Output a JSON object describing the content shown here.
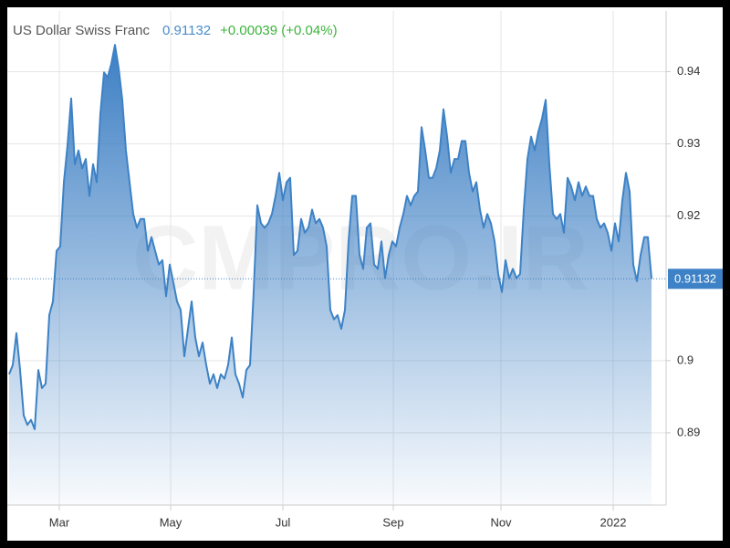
{
  "chart_data": {
    "type": "area",
    "title": "US Dollar Swiss Franc",
    "price": 0.91132,
    "change": "+0.00039 (+0.04%)",
    "watermark": "CMPRO.IR",
    "color": "#3d82c6",
    "values": [
      0.8981,
      0.8994,
      0.9038,
      0.8987,
      0.8924,
      0.8911,
      0.8918,
      0.8905,
      0.8987,
      0.8962,
      0.8968,
      0.9063,
      0.9082,
      0.9152,
      0.9158,
      0.9247,
      0.9298,
      0.9363,
      0.9272,
      0.9291,
      0.9266,
      0.9279,
      0.9228,
      0.9272,
      0.9247,
      0.9342,
      0.9399,
      0.9392,
      0.9411,
      0.9437,
      0.9405,
      0.9361,
      0.9291,
      0.9247,
      0.9203,
      0.9184,
      0.9196,
      0.9196,
      0.9152,
      0.9171,
      0.9152,
      0.9133,
      0.9139,
      0.9089,
      0.9133,
      0.9108,
      0.9082,
      0.907,
      0.9006,
      0.9044,
      0.9082,
      0.9032,
      0.9006,
      0.9025,
      0.8994,
      0.8968,
      0.8981,
      0.8962,
      0.8981,
      0.8975,
      0.8994,
      0.9032,
      0.8981,
      0.8968,
      0.8949,
      0.8987,
      0.8994,
      0.9095,
      0.9215,
      0.919,
      0.9184,
      0.919,
      0.9203,
      0.9228,
      0.926,
      0.9222,
      0.9247,
      0.9253,
      0.9146,
      0.9152,
      0.9196,
      0.9177,
      0.9184,
      0.9209,
      0.919,
      0.9196,
      0.9184,
      0.9158,
      0.907,
      0.9057,
      0.9063,
      0.9044,
      0.907,
      0.9165,
      0.9228,
      0.9228,
      0.9146,
      0.9127,
      0.9184,
      0.919,
      0.9133,
      0.9127,
      0.9165,
      0.9114,
      0.9146,
      0.9165,
      0.9158,
      0.9184,
      0.9203,
      0.9228,
      0.9215,
      0.9228,
      0.9234,
      0.9323,
      0.9291,
      0.9253,
      0.9253,
      0.9266,
      0.9291,
      0.9348,
      0.931,
      0.926,
      0.9279,
      0.9279,
      0.9304,
      0.9304,
      0.926,
      0.9234,
      0.9247,
      0.9209,
      0.9184,
      0.9203,
      0.919,
      0.9165,
      0.912,
      0.9095,
      0.9139,
      0.9114,
      0.9127,
      0.9114,
      0.912,
      0.9209,
      0.9279,
      0.931,
      0.9291,
      0.9317,
      0.9335,
      0.9361,
      0.9272,
      0.9203,
      0.9196,
      0.9203,
      0.9177,
      0.9253,
      0.9241,
      0.9222,
      0.9247,
      0.9228,
      0.9241,
      0.9228,
      0.9228,
      0.9196,
      0.9184,
      0.919,
      0.9177,
      0.9152,
      0.919,
      0.9165,
      0.9222,
      0.926,
      0.9234,
      0.9133,
      0.911,
      0.9146,
      0.9171,
      0.9171,
      0.91132
    ],
    "xlim": [
      0,
      176
    ],
    "xticks": [
      {
        "value": 13.75,
        "label": "Mar"
      },
      {
        "value": 44.25,
        "label": "May"
      },
      {
        "value": 75,
        "label": "Jul"
      },
      {
        "value": 105.25,
        "label": "Sep"
      },
      {
        "value": 134.75,
        "label": "Nov"
      },
      {
        "value": 165.5,
        "label": "2022"
      }
    ],
    "ylim": [
      0.88,
      0.9484
    ],
    "yticks": [
      0.89,
      0.9,
      0.92,
      0.93,
      0.94
    ],
    "grid": true
  }
}
